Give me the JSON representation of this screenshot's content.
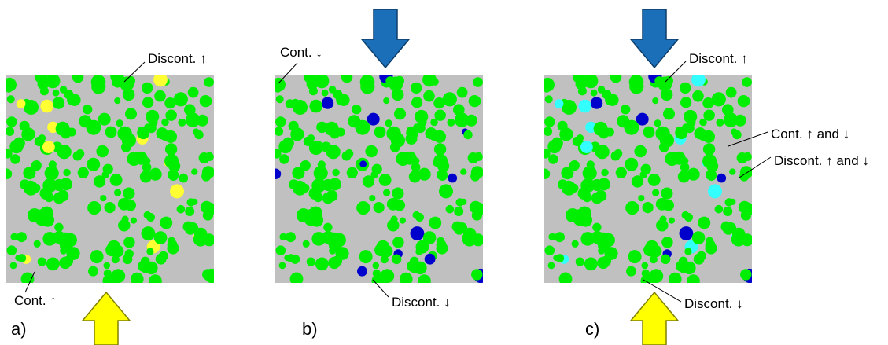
{
  "colors": {
    "background": "#c0c0c0",
    "connected": "#00ee00",
    "discont_up": "#ffff33",
    "discont_down": "#0000cc",
    "discont_both": "#33ffff",
    "arrow_down": "#1a6fb8",
    "arrow_up": "#ffff00"
  },
  "panels": [
    {
      "label": "a)",
      "arrows": [
        "up"
      ],
      "annotations": [
        {
          "text": "Discont. ↑"
        },
        {
          "text": "Cont. ↑"
        }
      ]
    },
    {
      "label": "b)",
      "arrows": [
        "down"
      ],
      "annotations": [
        {
          "text": "Cont. ↓"
        },
        {
          "text": "Discont. ↓"
        }
      ]
    },
    {
      "label": "c)",
      "arrows": [
        "down",
        "up"
      ],
      "annotations": [
        {
          "text": "Discont. ↑"
        },
        {
          "text": "Cont. ↑ and ↓"
        },
        {
          "text": "Discont. ↑ and ↓"
        },
        {
          "text": "Discont. ↓"
        }
      ]
    }
  ]
}
